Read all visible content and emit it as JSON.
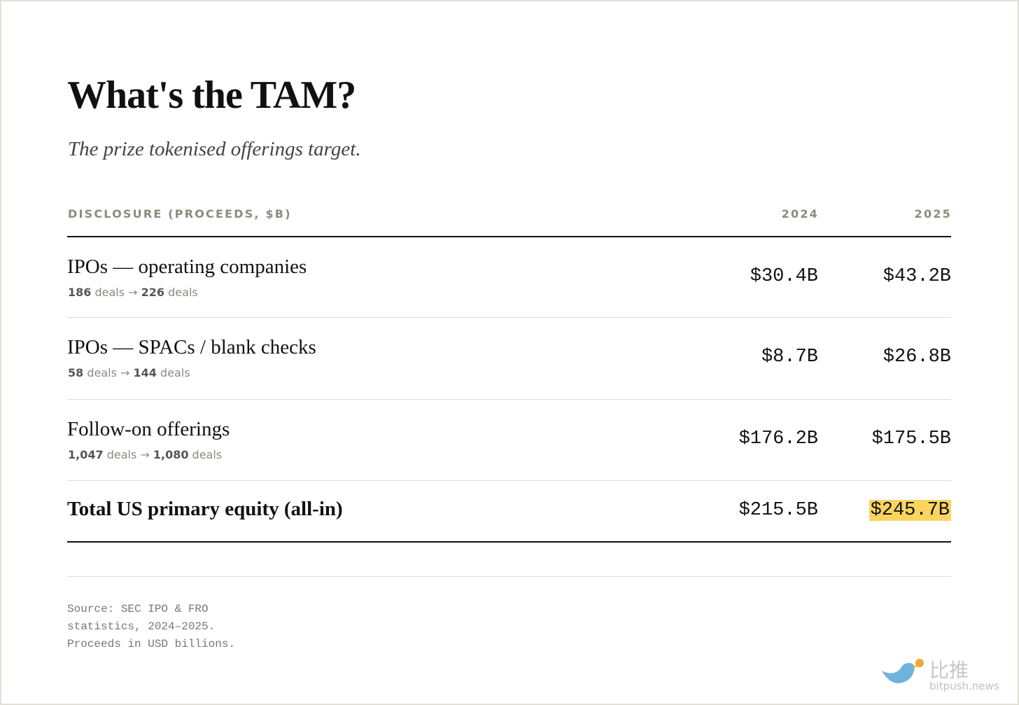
{
  "header": {
    "title": "What's the TAM?",
    "subtitle": "The prize tokenised offerings target."
  },
  "table": {
    "columns": [
      "DISCLOSURE (PROCEEDS, $B)",
      "2024",
      "2025"
    ],
    "rows": [
      {
        "label": "IPOs — operating companies",
        "detail": [
          "186",
          " deals → ",
          "226",
          " deals"
        ],
        "values": [
          "$30.4B",
          "$43.2B"
        ]
      },
      {
        "label": "IPOs — SPACs / blank checks",
        "detail": [
          "58",
          " deals → ",
          "144",
          " deals"
        ],
        "values": [
          "$8.7B",
          "$26.8B"
        ]
      },
      {
        "label": "Follow-on offerings",
        "detail": [
          "1,047",
          " deals → ",
          "1,080",
          " deals"
        ],
        "values": [
          "$176.2B",
          "$175.5B"
        ]
      }
    ],
    "total": {
      "label": "Total US primary equity (all-in)",
      "values": [
        "$215.5B",
        "$245.7B"
      ],
      "highlight": 1
    }
  },
  "footer": {
    "source": [
      "Source: SEC IPO & FRO",
      "statistics, 2024–2025.",
      "Proceeds in USD billions."
    ]
  },
  "watermark": {
    "name": "比推",
    "site": "bitpush.news"
  }
}
